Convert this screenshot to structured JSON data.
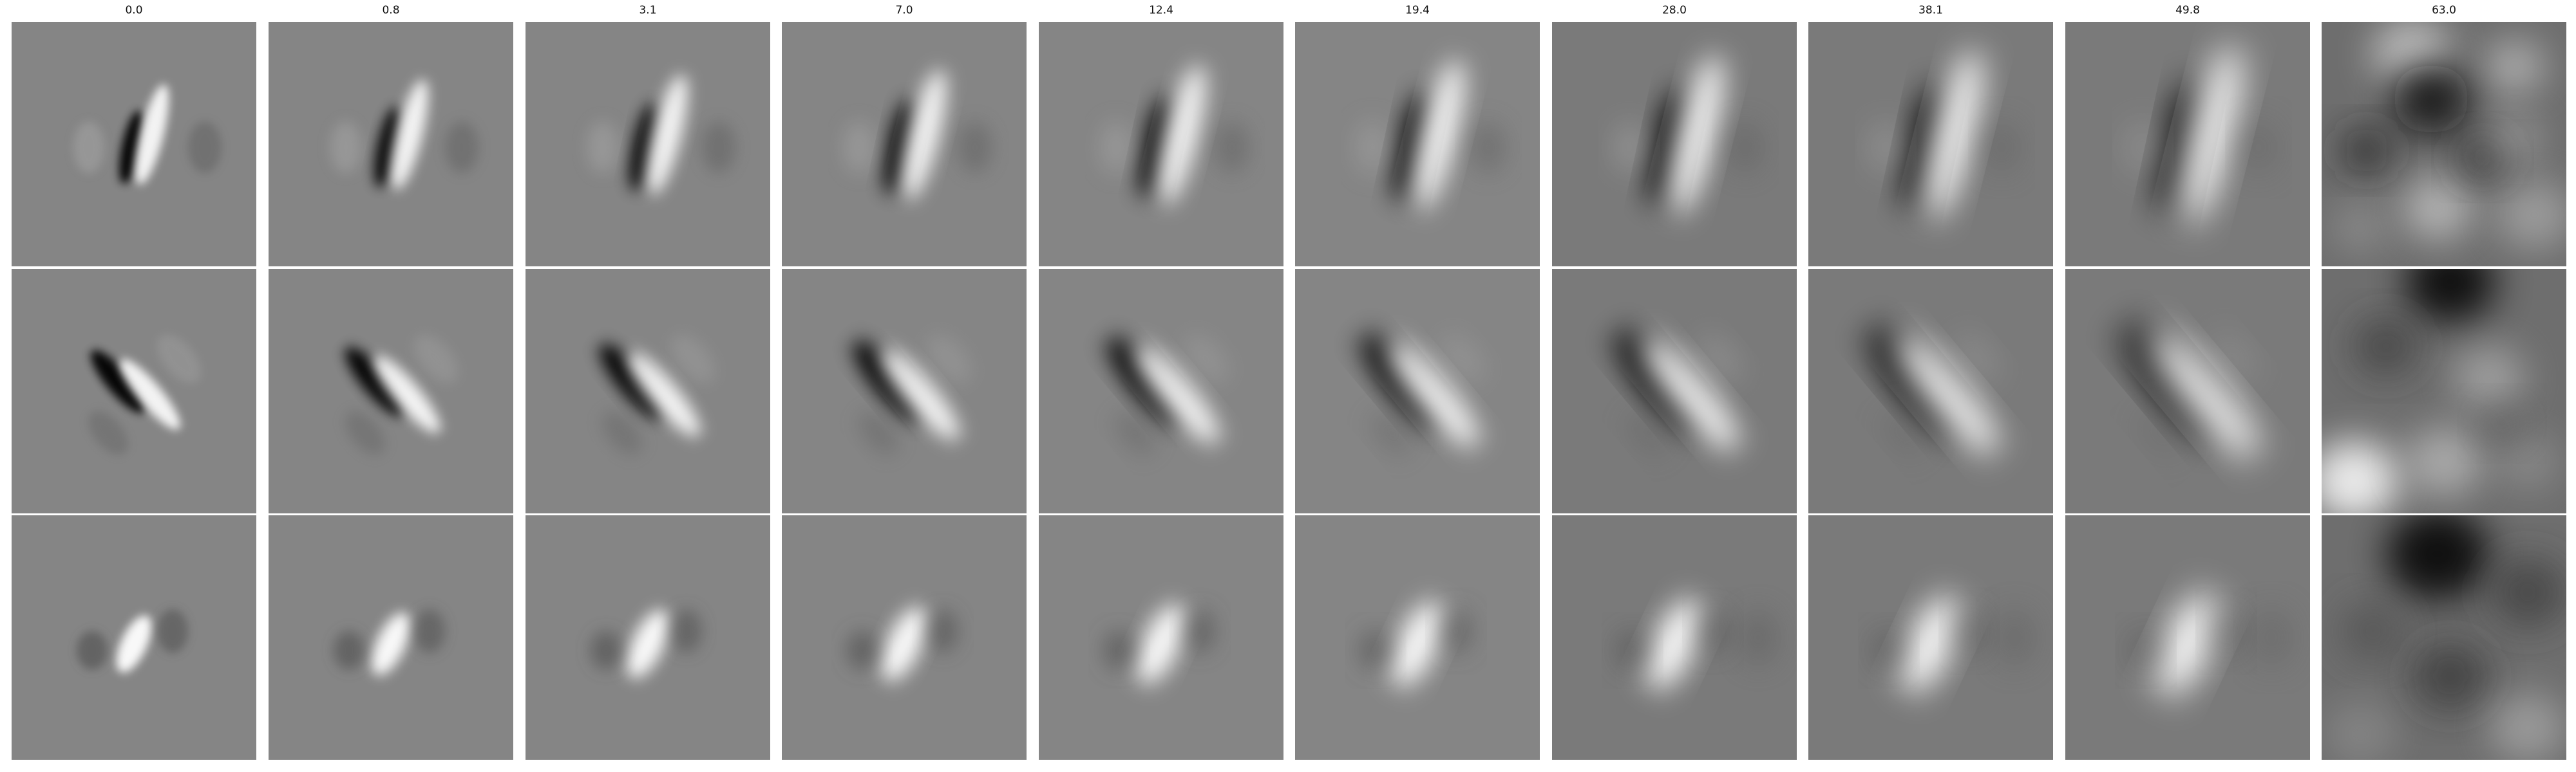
{
  "column_titles": [
    "0.0",
    "0.8",
    "3.1",
    "7.0",
    "12.4",
    "19.4",
    "28.0",
    "38.1",
    "49.8",
    "63.0"
  ],
  "rows": [
    {
      "description": "vertical dark/bright filter pair"
    },
    {
      "description": "diagonal dark/bright filter pair"
    },
    {
      "description": "bright center-on filter with dark flanks"
    }
  ],
  "colors": {
    "background": "#ffffff",
    "neutral_gray": "#808080"
  }
}
